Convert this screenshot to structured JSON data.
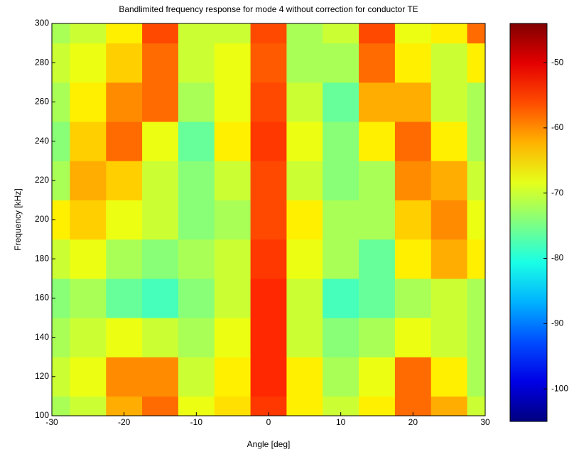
{
  "chart_data": {
    "type": "heatmap",
    "title": "Bandlimited frequency response for mode 4 without correction for conductor TE",
    "x_label": "Angle [deg]",
    "y_label": "Frequency [kHz]",
    "x": [
      -30,
      -25,
      -20,
      -15,
      -10,
      -5,
      0,
      5,
      10,
      15,
      20,
      25,
      30
    ],
    "y": [
      100,
      120,
      140,
      160,
      180,
      200,
      220,
      240,
      260,
      280,
      300
    ],
    "z": [
      [
        -72,
        -70,
        -62,
        -58,
        -68,
        -65,
        -55,
        -66,
        -70,
        -66,
        -58,
        -62,
        -70
      ],
      [
        -70,
        -68,
        -60,
        -60,
        -70,
        -66,
        -54,
        -66,
        -72,
        -68,
        -58,
        -66,
        -72
      ],
      [
        -72,
        -70,
        -68,
        -70,
        -72,
        -68,
        -54,
        -70,
        -74,
        -72,
        -68,
        -70,
        -72
      ],
      [
        -74,
        -72,
        -76,
        -78,
        -74,
        -70,
        -54,
        -70,
        -78,
        -76,
        -72,
        -70,
        -72
      ],
      [
        -70,
        -68,
        -72,
        -74,
        -72,
        -70,
        -55,
        -68,
        -72,
        -76,
        -66,
        -62,
        -66
      ],
      [
        -66,
        -64,
        -68,
        -70,
        -74,
        -72,
        -56,
        -66,
        -72,
        -72,
        -64,
        -60,
        -68
      ],
      [
        -72,
        -62,
        -64,
        -70,
        -74,
        -70,
        -56,
        -70,
        -74,
        -72,
        -60,
        -62,
        -70
      ],
      [
        -74,
        -64,
        -58,
        -68,
        -76,
        -66,
        -55,
        -68,
        -74,
        -66,
        -58,
        -66,
        -72
      ],
      [
        -72,
        -66,
        -60,
        -58,
        -72,
        -68,
        -56,
        -70,
        -76,
        -62,
        -62,
        -70,
        -72
      ],
      [
        -70,
        -68,
        -64,
        -58,
        -70,
        -68,
        -57,
        -72,
        -72,
        -58,
        -66,
        -70,
        -66
      ],
      [
        -72,
        -70,
        -66,
        -56,
        -70,
        -70,
        -56,
        -72,
        -70,
        -56,
        -68,
        -66,
        -58
      ]
    ],
    "xlim": [
      -30,
      30
    ],
    "ylim": [
      100,
      300
    ],
    "xticks": [
      -30,
      -20,
      -10,
      0,
      10,
      20,
      30
    ],
    "yticks": [
      100,
      120,
      140,
      160,
      180,
      200,
      220,
      240,
      260,
      280,
      300
    ],
    "clim": [
      -105,
      -44
    ],
    "cticks": [
      -50,
      -60,
      -70,
      -80,
      -90,
      -100
    ],
    "colormap": "jet"
  }
}
